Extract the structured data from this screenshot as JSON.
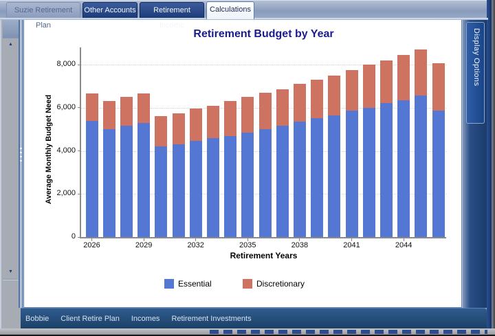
{
  "top_tabs": [
    {
      "label": "Suzie Retirement Plan",
      "state": "disabled"
    },
    {
      "label": "Other Accounts",
      "state": "inactive"
    },
    {
      "label": "Retirement Income",
      "state": "inactive"
    },
    {
      "label": "Calculations",
      "state": "active"
    }
  ],
  "right_panel": {
    "tab_label": "Display Options"
  },
  "bottom_bar": {
    "items": [
      "Bobbie",
      "Client Retire Plan",
      "Incomes",
      "Retirement Investments"
    ]
  },
  "colors": {
    "bar_essential": "#5577D4",
    "bar_discretionary": "#CE7261",
    "chart_title": "#1B1B8E",
    "tab_navy": "#1C3C78",
    "bottom_bar_bg": "#1B4166",
    "axis_gray": "#8A8A8A"
  },
  "chart_data": {
    "type": "bar",
    "stacked": true,
    "title": "Retirement Budget by Year",
    "xlabel": "Retirement Years",
    "ylabel": "Average Monthly Budget Need",
    "categories": [
      2026,
      2027,
      2028,
      2029,
      2030,
      2031,
      2032,
      2033,
      2034,
      2035,
      2036,
      2037,
      2038,
      2039,
      2040,
      2041,
      2042,
      2043,
      2044,
      2045,
      2046
    ],
    "x_tick_labels": [
      "2026",
      "2029",
      "2032",
      "2035",
      "2038",
      "2041",
      "2044"
    ],
    "x_tick_every": 3,
    "y_tick_values": [
      0,
      2000,
      4000,
      6000,
      8000
    ],
    "y_tick_labels": [
      "0",
      "2,000",
      "4,000",
      "6,000",
      "8,000"
    ],
    "ylim": [
      0,
      8600
    ],
    "grid": "horizontal-dotted",
    "legend_position": "bottom",
    "series": [
      {
        "name": "Essential",
        "color": "#5577D4",
        "values": [
          5400,
          5000,
          5150,
          5300,
          4200,
          4300,
          4450,
          4600,
          4700,
          4850,
          5000,
          5150,
          5350,
          5500,
          5650,
          5850,
          6000,
          6200,
          6350,
          6550,
          5850
        ]
      },
      {
        "name": "Discretionary",
        "color": "#CE7261",
        "values": [
          1250,
          1300,
          1350,
          1350,
          1400,
          1450,
          1500,
          1500,
          1600,
          1650,
          1700,
          1700,
          1750,
          1800,
          1850,
          1900,
          2000,
          2000,
          2100,
          2150,
          2200
        ]
      }
    ]
  }
}
